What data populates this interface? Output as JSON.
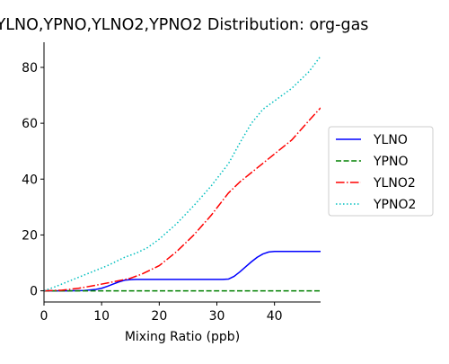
{
  "chart_data": {
    "type": "line",
    "title": "YLNO,YPNO,YLNO2,YPNO2 Distribution: org-gas",
    "xlabel": "Mixing Ratio (ppb)",
    "ylabel": "",
    "xlim": [
      0,
      48
    ],
    "ylim": [
      -4,
      89
    ],
    "xticks": [
      0,
      10,
      20,
      30,
      40
    ],
    "yticks": [
      0,
      20,
      40,
      60,
      80
    ],
    "grid": false,
    "legend_position": "center-right, outside plot",
    "series": [
      {
        "name": "YLNO",
        "color": "#0000ff",
        "linestyle": "solid",
        "x": [
          0,
          4,
          7,
          9,
          10,
          11,
          12,
          13,
          14,
          15,
          16,
          20,
          25,
          30,
          31,
          32,
          33,
          34,
          35,
          36,
          37,
          38,
          39,
          40,
          41,
          44,
          48
        ],
        "y": [
          0,
          0,
          0.1,
          0.5,
          0.9,
          1.6,
          2.4,
          3.2,
          3.8,
          4.0,
          4.1,
          4.1,
          4.1,
          4.1,
          4.1,
          4.2,
          5.2,
          6.8,
          8.6,
          10.4,
          12.0,
          13.2,
          13.9,
          14.1,
          14.1,
          14.1,
          14.1
        ]
      },
      {
        "name": "YPNO",
        "color": "#008000",
        "linestyle": "dashed",
        "x": [
          0,
          48
        ],
        "y": [
          0,
          0
        ]
      },
      {
        "name": "YLNO2",
        "color": "#ff0000",
        "linestyle": "dashdot",
        "x": [
          0,
          3,
          6,
          9,
          12,
          15,
          17,
          20,
          23,
          26,
          29,
          32,
          34,
          37,
          40,
          43,
          46,
          48
        ],
        "y": [
          0,
          0.2,
          0.9,
          2.0,
          3.2,
          4.5,
          6.0,
          9.0,
          14.0,
          20.0,
          27.0,
          35.0,
          39.0,
          44.0,
          49.0,
          54.0,
          61.0,
          65.5
        ]
      },
      {
        "name": "YPNO2",
        "color": "#00bfbf",
        "linestyle": "dotted",
        "x": [
          0,
          2,
          5,
          8,
          11,
          14,
          16,
          18,
          20,
          23,
          26,
          29,
          32,
          34,
          36,
          38,
          40,
          43,
          46,
          48
        ],
        "y": [
          0,
          1.5,
          4.0,
          6.5,
          9.0,
          12.0,
          13.5,
          15.5,
          18.5,
          24.0,
          30.5,
          37.5,
          45.5,
          53.0,
          60.0,
          65.0,
          68.0,
          72.5,
          78.5,
          84.0
        ]
      }
    ]
  }
}
